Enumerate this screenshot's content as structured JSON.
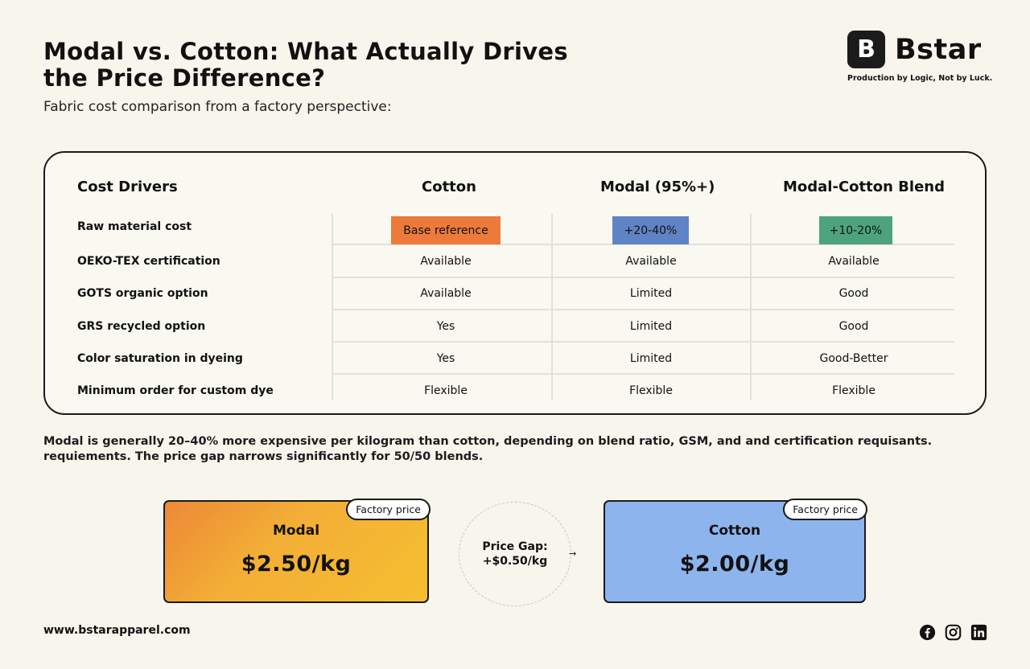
{
  "header": {
    "title": "Modal vs. Cotton: What Actually Drives the Price Difference?",
    "subtitle": "Fabric cost comparison from a factory perspective:"
  },
  "brand": {
    "logo_letter": "B",
    "name": "Bstar",
    "tagline": "Production by Logic, Not by Luck."
  },
  "table": {
    "columns": [
      "Cost Drivers",
      "Cotton",
      "Modal (95%+)",
      "Modal-Cotton Blend"
    ],
    "rows": [
      {
        "label": "Raw material cost",
        "cotton": "Base reference",
        "modal": "+20-40%",
        "blend": "+10-20%"
      },
      {
        "label": "OEKO-TEX certification",
        "cotton": "Available",
        "modal": "Available",
        "blend": "Available"
      },
      {
        "label": "GOTS organic option",
        "cotton": "Available",
        "modal": "Limited",
        "blend": "Good"
      },
      {
        "label": "GRS recycled option",
        "cotton": "Yes",
        "modal": "Limited",
        "blend": "Good"
      },
      {
        "label": "Color saturation in dyeing",
        "cotton": "Yes",
        "modal": "Limited",
        "blend": "Good-Better"
      },
      {
        "label": "Minimum order for custom dye",
        "cotton": "Flexible",
        "modal": "Flexible",
        "blend": "Flexible"
      }
    ],
    "pill_colors": {
      "cotton": "#ec7b3b",
      "modal": "#5f84c6",
      "blend": "#4da47c"
    }
  },
  "note": {
    "line1": "Modal is generally 20–40% more expensive per kilogram than cotton, depending on blend ratio, GSM, and and certification requisants.",
    "line2": "requiements. The price gap narrows significantly for 50/50 blends."
  },
  "comparison": {
    "modal": {
      "badge": "Factory price",
      "name": "Modal",
      "price": "$2.50/kg"
    },
    "gap": {
      "label": "Price Gap:",
      "value": "+$0.50/kg",
      "arrow": "→"
    },
    "cotton": {
      "badge": "Factory price",
      "name": "Cotton",
      "price": "$2.00/kg"
    }
  },
  "footer": {
    "website": "www.bstarapparel.com",
    "social_icons": [
      "facebook-icon",
      "instagram-icon",
      "linkedin-icon"
    ]
  }
}
